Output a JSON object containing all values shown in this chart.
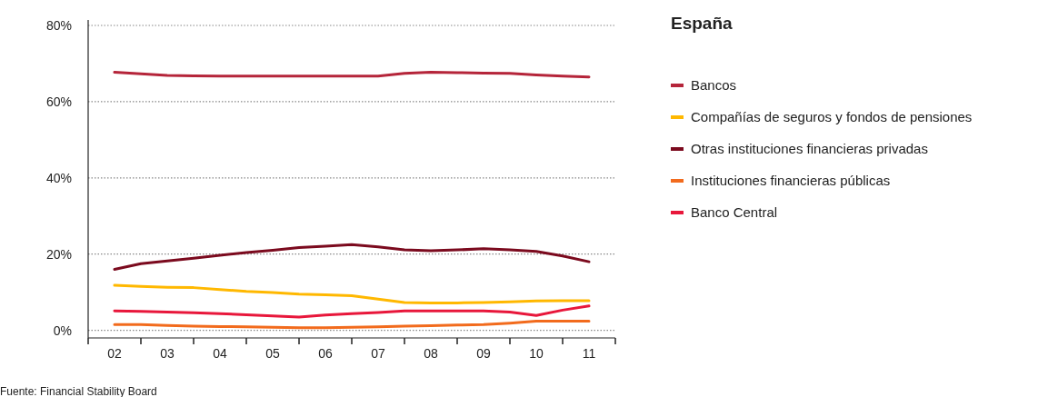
{
  "chart_data": {
    "type": "line",
    "legend_title": "España",
    "annotations": [
      "Fuente: Financial Stability Board"
    ],
    "x": [
      2002,
      2002.5,
      2003,
      2003.5,
      2004,
      2004.5,
      2005,
      2005.5,
      2006,
      2006.5,
      2007,
      2007.5,
      2008,
      2008.5,
      2009,
      2009.5,
      2010,
      2010.5,
      2011
    ],
    "xlim": [
      2001.5,
      2011.5
    ],
    "xticks": [
      {
        "value": 2001.5,
        "label": null
      },
      {
        "value": 2002,
        "label": "02"
      },
      {
        "value": 2002.5,
        "label": null
      },
      {
        "value": 2003,
        "label": "03"
      },
      {
        "value": 2003.5,
        "label": null
      },
      {
        "value": 2004,
        "label": "04"
      },
      {
        "value": 2004.5,
        "label": null
      },
      {
        "value": 2005,
        "label": "05"
      },
      {
        "value": 2005.5,
        "label": null
      },
      {
        "value": 2006,
        "label": "06"
      },
      {
        "value": 2006.5,
        "label": null
      },
      {
        "value": 2007,
        "label": "07"
      },
      {
        "value": 2007.5,
        "label": null
      },
      {
        "value": 2008,
        "label": "08"
      },
      {
        "value": 2008.5,
        "label": null
      },
      {
        "value": 2009,
        "label": "09"
      },
      {
        "value": 2009.5,
        "label": null
      },
      {
        "value": 2010,
        "label": "10"
      },
      {
        "value": 2010.5,
        "label": null
      },
      {
        "value": 2011,
        "label": "11"
      },
      {
        "value": 2011.5,
        "label": null
      }
    ],
    "ylim": [
      -2,
      80
    ],
    "yticks": [
      {
        "value": 0,
        "label": "0%"
      },
      {
        "value": 20,
        "label": "20%"
      },
      {
        "value": 40,
        "label": "40%"
      },
      {
        "value": 60,
        "label": "60%"
      },
      {
        "value": 80,
        "label": "80%"
      }
    ],
    "grid": "y",
    "legend": "right",
    "marker": "none",
    "line_style": "solid",
    "series": [
      {
        "name": "Bancos",
        "color": "#b5253a",
        "values": [
          67.7,
          67.3,
          66.9,
          66.8,
          66.7,
          66.7,
          66.7,
          66.7,
          66.7,
          66.7,
          66.7,
          67.4,
          67.7,
          67.6,
          67.5,
          67.4,
          67.0,
          66.7,
          66.5
        ]
      },
      {
        "name": "Compañías de seguros y fondos de pensiones",
        "color": "#ffb800",
        "values": [
          11.8,
          11.5,
          11.3,
          11.2,
          10.7,
          10.2,
          9.9,
          9.5,
          9.3,
          9.1,
          8.2,
          7.3,
          7.2,
          7.2,
          7.3,
          7.5,
          7.7,
          7.8,
          7.8
        ]
      },
      {
        "name": "Otras instituciones financieras privadas",
        "color": "#7b0a1e",
        "values": [
          16.0,
          17.5,
          18.2,
          18.9,
          19.7,
          20.4,
          21.0,
          21.7,
          22.1,
          22.5,
          21.9,
          21.1,
          20.9,
          21.1,
          21.4,
          21.1,
          20.7,
          19.5,
          18.0
        ]
      },
      {
        "name": "Instituciones financieras públicas",
        "color": "#f26b1d",
        "values": [
          1.5,
          1.5,
          1.3,
          1.1,
          1.0,
          0.9,
          0.8,
          0.7,
          0.7,
          0.8,
          0.9,
          1.1,
          1.2,
          1.4,
          1.5,
          1.9,
          2.4,
          2.4,
          2.4
        ]
      },
      {
        "name": "Banco Central",
        "color": "#e8173b",
        "values": [
          5.1,
          5.0,
          4.8,
          4.6,
          4.4,
          4.1,
          3.8,
          3.5,
          4.0,
          4.4,
          4.7,
          5.1,
          5.1,
          5.1,
          5.1,
          4.8,
          3.9,
          5.3,
          6.4
        ]
      }
    ]
  }
}
